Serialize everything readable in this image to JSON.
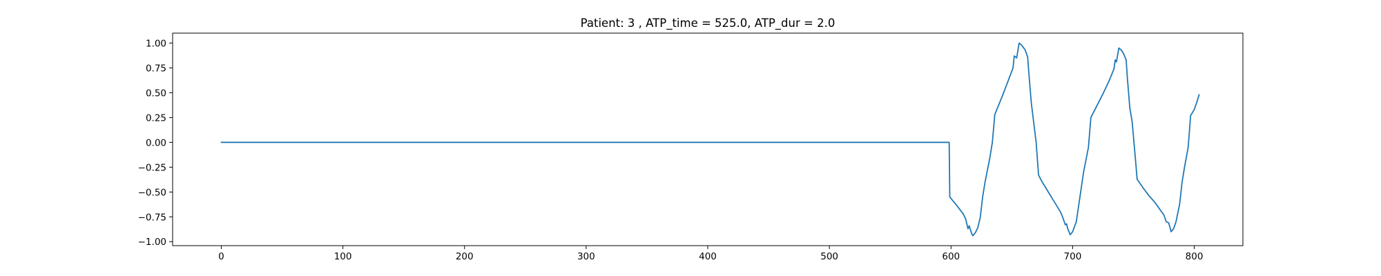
{
  "chart_data": {
    "type": "line",
    "title": "Patient: 3 , ATP_time = 525.0, ATP_dur = 2.0",
    "xlabel": "",
    "ylabel": "",
    "xlim": [
      -40,
      840
    ],
    "ylim": [
      -1.04,
      1.1
    ],
    "grid": false,
    "x_ticks": [
      0,
      100,
      200,
      300,
      400,
      500,
      600,
      700,
      800
    ],
    "x_tick_labels": [
      "0",
      "100",
      "200",
      "300",
      "400",
      "500",
      "600",
      "700",
      "800"
    ],
    "y_ticks": [
      1.0,
      0.75,
      0.5,
      0.25,
      0.0,
      -0.25,
      -0.5,
      -0.75,
      -1.0
    ],
    "y_tick_labels": [
      "1.00",
      "0.75",
      "0.50",
      "0.25",
      "0.00",
      "−0.25",
      "−0.50",
      "−0.75",
      "−1.00"
    ],
    "series": [
      {
        "color": "#1f77b4",
        "points": [
          [
            0,
            0.0
          ],
          [
            100,
            0.0
          ],
          [
            200,
            0.0
          ],
          [
            300,
            0.0
          ],
          [
            400,
            0.0
          ],
          [
            500,
            0.0
          ],
          [
            598.5,
            0.0
          ],
          [
            599,
            -0.55
          ],
          [
            605,
            -0.64
          ],
          [
            610,
            -0.72
          ],
          [
            612,
            -0.77
          ],
          [
            614,
            -0.87
          ],
          [
            615,
            -0.84
          ],
          [
            616,
            -0.88
          ],
          [
            617,
            -0.92
          ],
          [
            618,
            -0.94
          ],
          [
            620,
            -0.91
          ],
          [
            622,
            -0.86
          ],
          [
            624,
            -0.76
          ],
          [
            626,
            -0.55
          ],
          [
            628,
            -0.4
          ],
          [
            632,
            -0.15
          ],
          [
            634,
            0.0
          ],
          [
            636,
            0.28
          ],
          [
            637,
            0.31
          ],
          [
            642,
            0.46
          ],
          [
            647,
            0.62
          ],
          [
            651,
            0.75
          ],
          [
            652,
            0.87
          ],
          [
            654,
            0.85
          ],
          [
            656,
            1.0
          ],
          [
            658,
            0.98
          ],
          [
            661,
            0.93
          ],
          [
            663,
            0.86
          ],
          [
            664,
            0.7
          ],
          [
            666,
            0.4
          ],
          [
            667,
            0.3
          ],
          [
            670,
            0.0
          ],
          [
            672,
            -0.33
          ],
          [
            675,
            -0.4
          ],
          [
            680,
            -0.5
          ],
          [
            685,
            -0.6
          ],
          [
            690,
            -0.7
          ],
          [
            692,
            -0.76
          ],
          [
            694,
            -0.83
          ],
          [
            695,
            -0.82
          ],
          [
            696,
            -0.87
          ],
          [
            698,
            -0.93
          ],
          [
            700,
            -0.9
          ],
          [
            703,
            -0.8
          ],
          [
            706,
            -0.55
          ],
          [
            709,
            -0.3
          ],
          [
            713,
            -0.05
          ],
          [
            715,
            0.25
          ],
          [
            720,
            0.37
          ],
          [
            725,
            0.49
          ],
          [
            730,
            0.62
          ],
          [
            734,
            0.74
          ],
          [
            735,
            0.83
          ],
          [
            736,
            0.81
          ],
          [
            738,
            0.95
          ],
          [
            740,
            0.93
          ],
          [
            742,
            0.89
          ],
          [
            744,
            0.83
          ],
          [
            745,
            0.65
          ],
          [
            747,
            0.35
          ],
          [
            749,
            0.2
          ],
          [
            752,
            -0.22
          ],
          [
            753,
            -0.37
          ],
          [
            758,
            -0.46
          ],
          [
            763,
            -0.54
          ],
          [
            768,
            -0.61
          ],
          [
            772,
            -0.68
          ],
          [
            775,
            -0.73
          ],
          [
            777,
            -0.8
          ],
          [
            779,
            -0.81
          ],
          [
            781,
            -0.9
          ],
          [
            783,
            -0.87
          ],
          [
            785,
            -0.8
          ],
          [
            788,
            -0.62
          ],
          [
            790,
            -0.4
          ],
          [
            792,
            -0.25
          ],
          [
            795,
            -0.05
          ],
          [
            797,
            0.27
          ],
          [
            800,
            0.33
          ],
          [
            802,
            0.4
          ],
          [
            804,
            0.48
          ]
        ]
      }
    ]
  }
}
